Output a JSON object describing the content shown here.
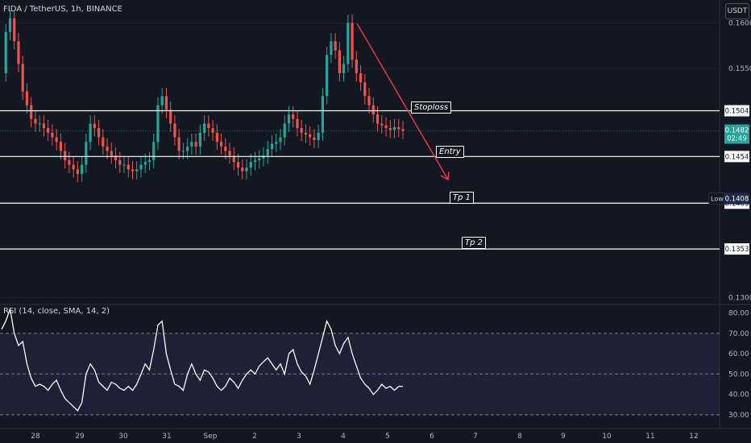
{
  "header": {
    "symbol_line": "FIDA / TetherUS, 1h, BINANCE",
    "currency": "USDT",
    "rsi_line": "RSI (14, close, SMA, 14, 2)"
  },
  "price_axis": {
    "ticks": [
      "0.1600",
      "0.1550",
      "0.1300"
    ],
    "ylim": [
      0.1295,
      0.1625
    ]
  },
  "rsi_axis": {
    "ticks": [
      "80.00",
      "70.00",
      "60.00",
      "50.00",
      "40.00",
      "30.00"
    ],
    "ylim": [
      28,
      83
    ]
  },
  "x_labels": [
    "28",
    "29",
    "30",
    "31",
    "Sep",
    "2",
    "3",
    "4",
    "5",
    "6",
    "7",
    "8",
    "9",
    "10",
    "11",
    "12"
  ],
  "levels": [
    {
      "name": "Stoploss",
      "price": 0.1504,
      "value": "0.1504"
    },
    {
      "name": "Entry",
      "price": 0.1454,
      "value": "0.1454"
    },
    {
      "name": "Tp 1",
      "price": 0.1403,
      "value": "0.1403"
    },
    {
      "name": "Tp 2",
      "price": 0.1353,
      "value": "0.1353"
    }
  ],
  "current_price": {
    "value": "0.1482",
    "countdown": "02:49"
  },
  "low_marker": {
    "label": "Low",
    "value": "0.1408"
  },
  "colors": {
    "background": "#131722",
    "up": "#26a69a",
    "down": "#ef5350",
    "level_line": "#ffffff",
    "arrow": "#f23645",
    "rsi_line": "#ffffff",
    "rsi_band": "#7e57c2"
  },
  "chart_data": {
    "type": "candlestick",
    "price_series": [
      0.1545,
      0.159,
      0.1605,
      0.158,
      0.1555,
      0.1525,
      0.151,
      0.1495,
      0.149,
      0.149,
      0.1485,
      0.148,
      0.1475,
      0.147,
      0.146,
      0.145,
      0.1445,
      0.144,
      0.1435,
      0.1445,
      0.147,
      0.149,
      0.1485,
      0.1475,
      0.1465,
      0.146,
      0.1455,
      0.145,
      0.1445,
      0.1445,
      0.144,
      0.1438,
      0.144,
      0.1445,
      0.1448,
      0.145,
      0.147,
      0.151,
      0.152,
      0.1505,
      0.149,
      0.1475,
      0.146,
      0.146,
      0.1465,
      0.147,
      0.1465,
      0.148,
      0.149,
      0.1485,
      0.148,
      0.147,
      0.1465,
      0.146,
      0.1455,
      0.1448,
      0.1442,
      0.1438,
      0.1442,
      0.1448,
      0.145,
      0.1452,
      0.1455,
      0.1462,
      0.1468,
      0.147,
      0.1475,
      0.149,
      0.15,
      0.1495,
      0.1485,
      0.148,
      0.1478,
      0.1475,
      0.1472,
      0.148,
      0.152,
      0.1565,
      0.158,
      0.157,
      0.1545,
      0.1555,
      0.16,
      0.156,
      0.1545,
      0.1535,
      0.152,
      0.151,
      0.15,
      0.149,
      0.1488,
      0.1485,
      0.1483,
      0.1486,
      0.1484,
      0.1482
    ],
    "rsi_series": [
      72,
      76,
      82,
      70,
      64,
      66,
      55,
      48,
      44,
      45,
      44,
      42,
      45,
      47,
      42,
      38,
      36,
      34,
      32,
      36,
      50,
      55,
      52,
      46,
      44,
      42,
      46,
      45,
      43,
      42,
      44,
      42,
      45,
      50,
      55,
      52,
      62,
      74,
      76,
      60,
      52,
      45,
      44,
      42,
      50,
      55,
      50,
      47,
      52,
      51,
      48,
      44,
      42,
      44,
      48,
      46,
      43,
      47,
      50,
      52,
      50,
      54,
      56,
      58,
      55,
      52,
      55,
      50,
      60,
      62,
      55,
      51,
      49,
      45,
      52,
      60,
      68,
      76,
      72,
      64,
      60,
      65,
      68,
      60,
      54,
      48,
      45,
      43,
      40,
      42,
      45,
      43,
      44,
      42,
      44,
      44
    ],
    "rsi_bands": {
      "upper": 70,
      "middle": 50,
      "lower": 30
    }
  }
}
